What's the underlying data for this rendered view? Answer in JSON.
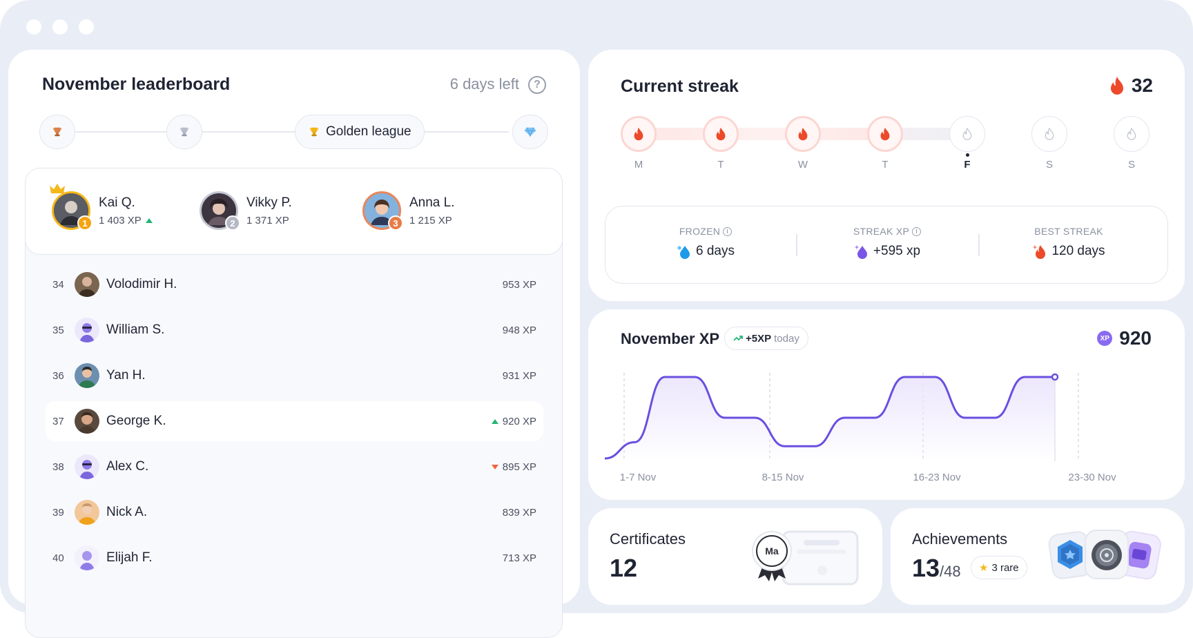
{
  "window": {
    "controls": [
      "dot",
      "dot",
      "dot"
    ]
  },
  "leaderboard": {
    "title": "November leaderboard",
    "time_left": "6 days left",
    "league": {
      "active_label": "Golden league"
    },
    "podium": [
      {
        "name": "Kai Q.",
        "xp": "1 403 XP",
        "rank": "1",
        "trend": "up"
      },
      {
        "name": "Vikky P.",
        "xp": "1 371 XP",
        "rank": "2"
      },
      {
        "name": "Anna L.",
        "xp": "1 215 XP",
        "rank": "3"
      }
    ],
    "rows": [
      {
        "rank": "34",
        "name": "Volodimir H.",
        "xp": "953 XP"
      },
      {
        "rank": "35",
        "name": "William S.",
        "xp": "948 XP"
      },
      {
        "rank": "36",
        "name": "Yan H.",
        "xp": "931 XP"
      },
      {
        "rank": "37",
        "name": "George K.",
        "xp": "920 XP",
        "trend": "up",
        "highlight": true
      },
      {
        "rank": "38",
        "name": "Alex C.",
        "xp": "895 XP",
        "trend": "down"
      },
      {
        "rank": "39",
        "name": "Nick A.",
        "xp": "839 XP"
      },
      {
        "rank": "40",
        "name": "Elijah F.",
        "xp": "713 XP"
      }
    ]
  },
  "streak": {
    "title": "Current streak",
    "count": "32",
    "days": [
      {
        "label": "M",
        "done": true
      },
      {
        "label": "T",
        "done": true
      },
      {
        "label": "W",
        "done": true
      },
      {
        "label": "T",
        "done": true
      },
      {
        "label": "F",
        "done": false,
        "today": true
      },
      {
        "label": "S",
        "done": false
      },
      {
        "label": "S",
        "done": false
      }
    ],
    "stats": [
      {
        "label": "FROZEN",
        "value": "6 days",
        "info": true
      },
      {
        "label": "STREAK XP",
        "value": "+595 xp",
        "info": true
      },
      {
        "label": "BEST STREAK",
        "value": "120 days",
        "info": false
      }
    ]
  },
  "xp_chart": {
    "title": "November XP",
    "badge_value": "+5XP",
    "badge_suffix": "today",
    "coin_label": "XP",
    "total": "920",
    "colors": {
      "line": "#6a4fe0",
      "fill": "#ebe5fc"
    }
  },
  "chart_data": {
    "type": "line",
    "x_labels": [
      "1-7 Nov",
      "8-15 Nov",
      "16-23 Nov",
      "23-30 Nov"
    ],
    "series": [
      {
        "values": [
          0,
          0.2,
          1.0,
          1.0,
          0.5,
          0.5,
          0.15,
          0.15,
          0.5,
          0.5,
          1.0,
          1.0,
          0.5,
          0.5,
          1.0,
          1.0
        ]
      }
    ],
    "ylim": [
      0,
      1
    ],
    "grid": "vertical dashed"
  },
  "certificates": {
    "title": "Certificates",
    "count": "12",
    "seal_text": "Ma"
  },
  "achievements": {
    "title": "Achievements",
    "count": "13",
    "total": "/48",
    "rare": "3 rare"
  }
}
